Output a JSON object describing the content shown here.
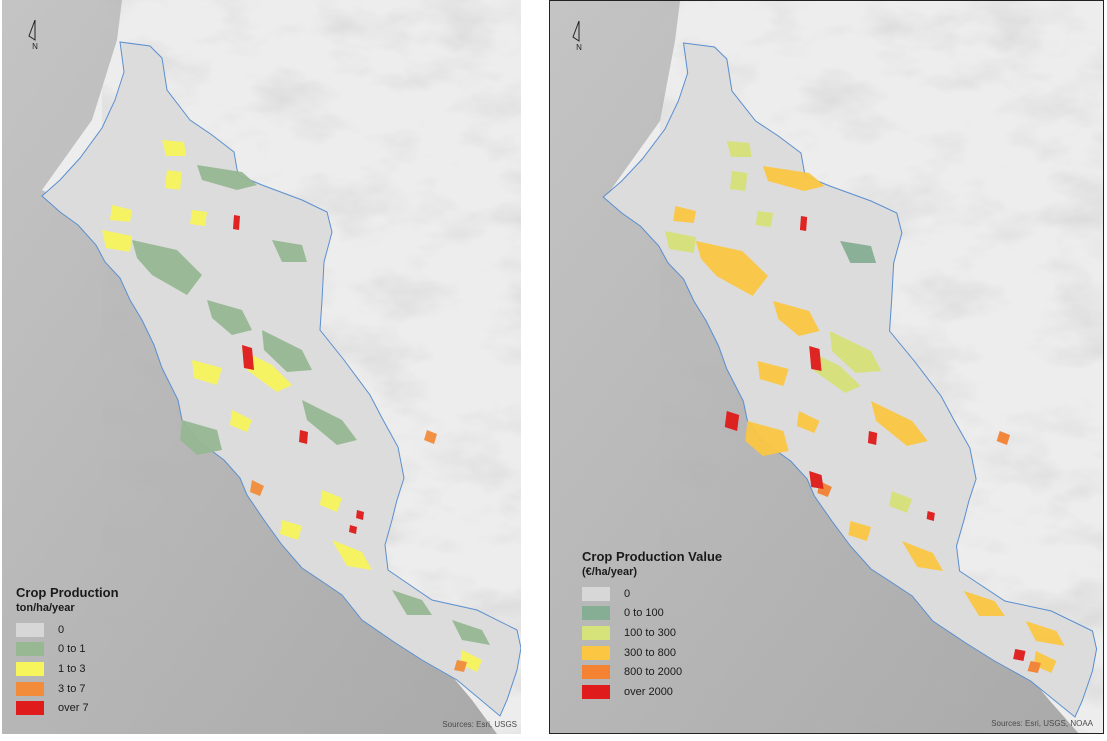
{
  "maps": [
    {
      "id": "left",
      "north_label": "N",
      "legend": {
        "title": "Crop Production",
        "subtitle": "ton/ha/year",
        "items": [
          {
            "label": "0",
            "color": "#d7d7d7"
          },
          {
            "label": "0 to 1",
            "color": "#97b893"
          },
          {
            "label": "1 to 3",
            "color": "#f7f55c"
          },
          {
            "label": "3 to 7",
            "color": "#f28c3b"
          },
          {
            "label": "over 7",
            "color": "#e01b1b"
          }
        ]
      },
      "credit": "Sources: Esri, USGS"
    },
    {
      "id": "right",
      "north_label": "N",
      "legend": {
        "title": "Crop Production Value",
        "subtitle": "(€/ha/year)",
        "items": [
          {
            "label": "0",
            "color": "#d7d7d7"
          },
          {
            "label": "0 to 100",
            "color": "#86ae94"
          },
          {
            "label": "100 to 300",
            "color": "#d6e27a"
          },
          {
            "label": "300 to 800",
            "color": "#fbc743"
          },
          {
            "label": "800 to 2000",
            "color": "#f38233"
          },
          {
            "label": "over 2000",
            "color": "#e01b1b"
          }
        ]
      },
      "credit": "Sources: Esri, USGS, NOAA"
    }
  ],
  "colors": {
    "ocean": "#b9b9b9",
    "land_hillshade": "#eeeeee",
    "region_fill": "#dcdcdc",
    "coastline": "#5b8fd0"
  }
}
